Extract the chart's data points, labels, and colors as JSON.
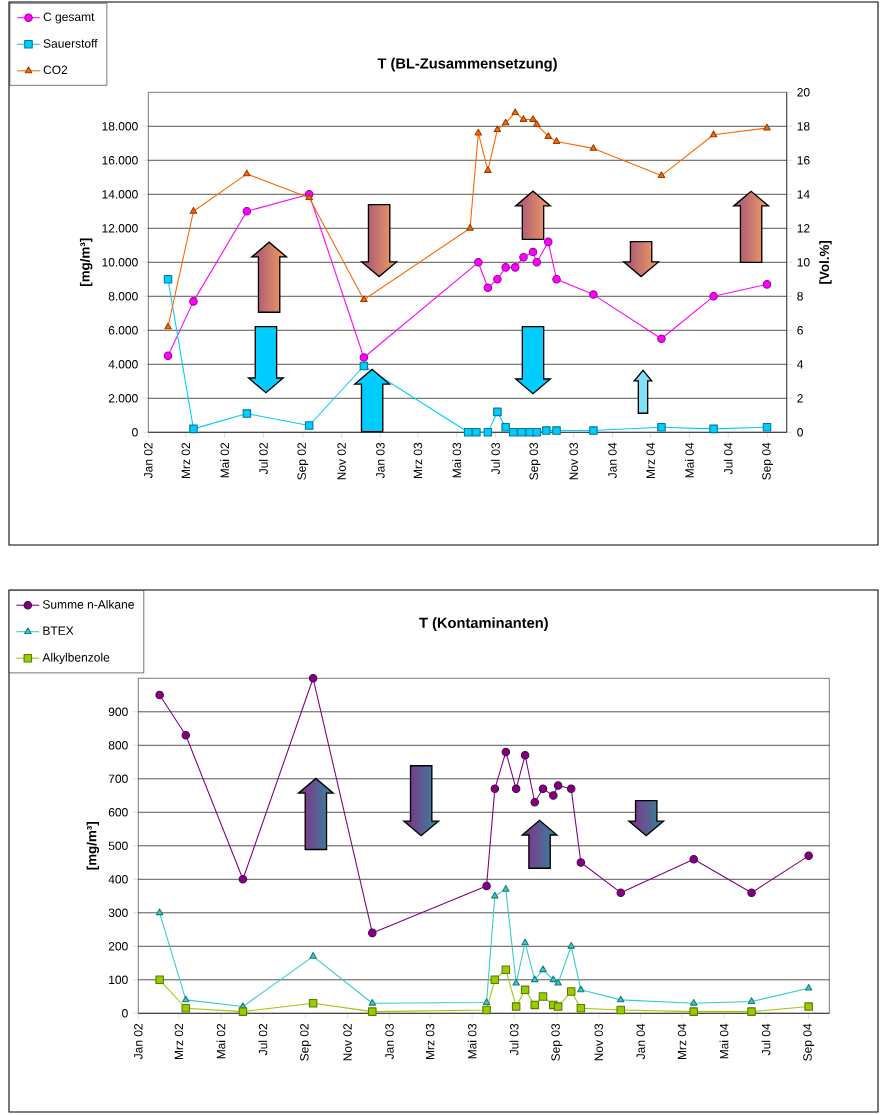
{
  "chart_data": [
    {
      "type": "line",
      "title": "T (BL-Zusammensetzung)",
      "ylabel": "[mg/m³]",
      "y2label": "[Vol.%]",
      "xlim": [
        "2002-01",
        "2004-10"
      ],
      "xticks": [
        {
          "value": "2002-01",
          "label": "Jan 02"
        },
        {
          "value": "2002-03",
          "label": "Mrz 02"
        },
        {
          "value": "2002-05",
          "label": "Mai 02"
        },
        {
          "value": "2002-07",
          "label": "Jul 02"
        },
        {
          "value": "2002-09",
          "label": "Sep 02"
        },
        {
          "value": "2002-11",
          "label": "Nov 02"
        },
        {
          "value": "2003-01",
          "label": "Jan 03"
        },
        {
          "value": "2003-03",
          "label": "Mrz 03"
        },
        {
          "value": "2003-05",
          "label": "Mai 03"
        },
        {
          "value": "2003-07",
          "label": "Jul 03"
        },
        {
          "value": "2003-09",
          "label": "Sep 03"
        },
        {
          "value": "2003-11",
          "label": "Nov 03"
        },
        {
          "value": "2004-01",
          "label": "Jan 04"
        },
        {
          "value": "2004-03",
          "label": "Mrz 04"
        },
        {
          "value": "2004-05",
          "label": "Mai 04"
        },
        {
          "value": "2004-07",
          "label": "Jul 04"
        },
        {
          "value": "2004-09",
          "label": "Sep 04"
        }
      ],
      "ylim": [
        0,
        20000
      ],
      "yticks": [
        0,
        {
          "value": 2000,
          "label": "2.000"
        },
        {
          "value": 4000,
          "label": "4.000"
        },
        {
          "value": 6000,
          "label": "6.000"
        },
        {
          "value": 8000,
          "label": "8.000"
        },
        {
          "value": 10000,
          "label": "10.000"
        },
        {
          "value": 12000,
          "label": "12.000"
        },
        {
          "value": 14000,
          "label": "14.000"
        },
        {
          "value": 16000,
          "label": "16.000"
        },
        {
          "value": 18000,
          "label": "18.000"
        }
      ],
      "y2lim": [
        0,
        20
      ],
      "y2ticks": [
        0,
        2,
        4,
        6,
        8,
        10,
        12,
        14,
        16,
        18,
        20
      ],
      "grid": "y",
      "legend": "top left",
      "series": [
        {
          "name": "C gesamt",
          "color": "#ff00ff",
          "marker": "circle",
          "x": [
            "2002-02-01",
            "2002-03-13",
            "2002-06-05",
            "2002-09-11",
            "2002-12-06",
            "2003-06-04",
            "2003-06-19",
            "2003-07-04",
            "2003-07-17",
            "2003-08-01",
            "2003-08-14",
            "2003-08-29",
            "2003-09-04",
            "2003-09-22",
            "2003-10-05",
            "2003-12-02",
            "2004-03-18",
            "2004-06-08",
            "2004-08-31"
          ],
          "values": [
            4500,
            7700,
            13000,
            14000,
            4400,
            10000,
            8500,
            9000,
            9700,
            9700,
            10300,
            10600,
            10000,
            11200,
            9000,
            8100,
            5500,
            8000,
            8700
          ]
        },
        {
          "name": "Sauerstoff",
          "color": "#00ccff",
          "marker": "square",
          "axis": "y2",
          "x": [
            "2002-02-01",
            "2002-03-13",
            "2002-06-05",
            "2002-09-11",
            "2002-12-06",
            "2003-05-19",
            "2003-06-01",
            "2003-06-19",
            "2003-07-04",
            "2003-07-17",
            "2003-07-29",
            "2003-08-11",
            "2003-08-24",
            "2003-09-04",
            "2003-09-19",
            "2003-10-05",
            "2003-12-02",
            "2004-03-18",
            "2004-06-08",
            "2004-08-31"
          ],
          "values": [
            9.0,
            0.2,
            1.1,
            0.4,
            3.9,
            0,
            0,
            0,
            1.2,
            0.3,
            0,
            0,
            0,
            0,
            0.1,
            0.1,
            0.1,
            0.3,
            0.2,
            0.3
          ]
        },
        {
          "name": "CO2",
          "color": "#ff6600",
          "marker": "triangle",
          "axis": "y2",
          "x": [
            "2002-02-01",
            "2002-03-13",
            "2002-06-05",
            "2002-09-11",
            "2002-12-06",
            "2003-05-22",
            "2003-06-04",
            "2003-06-19",
            "2003-07-04",
            "2003-07-17",
            "2003-08-01",
            "2003-08-14",
            "2003-08-29",
            "2003-09-04",
            "2003-09-22",
            "2003-10-05",
            "2003-12-02",
            "2004-03-18",
            "2004-06-08",
            "2004-08-31"
          ],
          "values": [
            6.2,
            13.0,
            15.2,
            13.8,
            7.8,
            12.0,
            17.6,
            15.4,
            17.8,
            18.2,
            18.8,
            18.4,
            18.4,
            18.1,
            17.4,
            17.1,
            16.7,
            15.1,
            17.5,
            17.9
          ]
        }
      ]
    },
    {
      "type": "line",
      "title": "T (Kontaminanten)",
      "ylabel": "[mg/m³]",
      "xlim": [
        "2002-01",
        "2004-10"
      ],
      "xticks": [
        {
          "value": "2002-01",
          "label": "Jan 02"
        },
        {
          "value": "2002-03",
          "label": "Mrz 02"
        },
        {
          "value": "2002-05",
          "label": "Mai 02"
        },
        {
          "value": "2002-07",
          "label": "Jul 02"
        },
        {
          "value": "2002-09",
          "label": "Sep 02"
        },
        {
          "value": "2002-11",
          "label": "Nov 02"
        },
        {
          "value": "2003-01",
          "label": "Jan 03"
        },
        {
          "value": "2003-03",
          "label": "Mrz 03"
        },
        {
          "value": "2003-05",
          "label": "Mai 03"
        },
        {
          "value": "2003-07",
          "label": "Jul 03"
        },
        {
          "value": "2003-09",
          "label": "Sep 03"
        },
        {
          "value": "2003-11",
          "label": "Nov 03"
        },
        {
          "value": "2004-01",
          "label": "Jan 04"
        },
        {
          "value": "2004-03",
          "label": "Mrz 04"
        },
        {
          "value": "2004-05",
          "label": "Mai 04"
        },
        {
          "value": "2004-07",
          "label": "Jul 04"
        },
        {
          "value": "2004-09",
          "label": "Sep 04"
        }
      ],
      "ylim": [
        0,
        1000
      ],
      "yticks": [
        0,
        100,
        200,
        300,
        400,
        500,
        600,
        700,
        800,
        900
      ],
      "grid": "y",
      "legend": "top left",
      "x": [
        "2002-02-01",
        "2002-03-11",
        "2002-06-02",
        "2002-09-12",
        "2002-12-07",
        "2003-05-22",
        "2003-06-03",
        "2003-06-19",
        "2003-07-04",
        "2003-07-17",
        "2003-07-31",
        "2003-08-12",
        "2003-08-27",
        "2003-09-03",
        "2003-09-22",
        "2003-10-06",
        "2003-12-03",
        "2004-03-18",
        "2004-06-10",
        "2004-09-01"
      ],
      "series": [
        {
          "name": "Summe n-Alkane",
          "color": "#800080",
          "marker": "circle",
          "values": [
            950,
            830,
            400,
            1000,
            240,
            380,
            670,
            780,
            670,
            770,
            630,
            670,
            650,
            680,
            670,
            450,
            360,
            460,
            360,
            470
          ]
        },
        {
          "name": "BTEX",
          "color": "#33cccc",
          "marker": "triangle",
          "values": [
            300,
            40,
            20,
            170,
            30,
            32,
            350,
            370,
            90,
            210,
            100,
            130,
            100,
            90,
            200,
            70,
            40,
            30,
            35,
            75
          ]
        },
        {
          "name": "Alkylbenzole",
          "color": "#99cc00",
          "marker": "square",
          "values": [
            100,
            15,
            5,
            30,
            5,
            10,
            100,
            130,
            20,
            70,
            25,
            50,
            25,
            20,
            65,
            15,
            10,
            5,
            5,
            20
          ]
        }
      ]
    }
  ]
}
